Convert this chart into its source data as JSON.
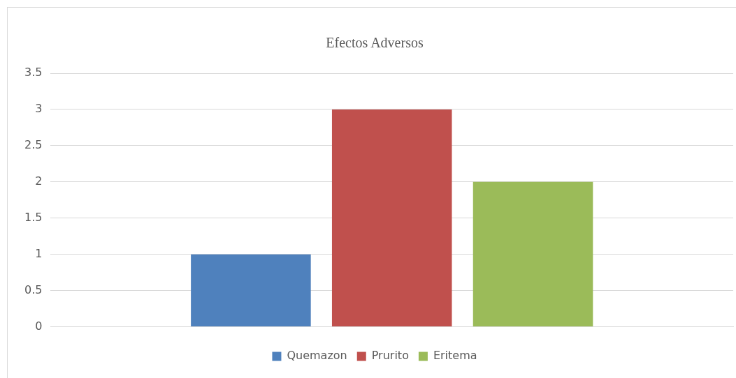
{
  "chart_data": {
    "type": "bar",
    "title": "Efectos Adversos",
    "categories": [
      null
    ],
    "series": [
      {
        "name": "Quemazon",
        "color": "#4f81bd",
        "values": [
          1
        ]
      },
      {
        "name": "Prurito",
        "color": "#c0504d",
        "values": [
          3
        ]
      },
      {
        "name": "Eritema",
        "color": "#9bbb59",
        "values": [
          2
        ]
      }
    ],
    "ylim": [
      0,
      3.5
    ],
    "yticks": [
      0,
      0.5,
      1,
      1.5,
      2,
      2.5,
      3,
      3.5
    ],
    "grid": "y",
    "legend": "bottom"
  }
}
